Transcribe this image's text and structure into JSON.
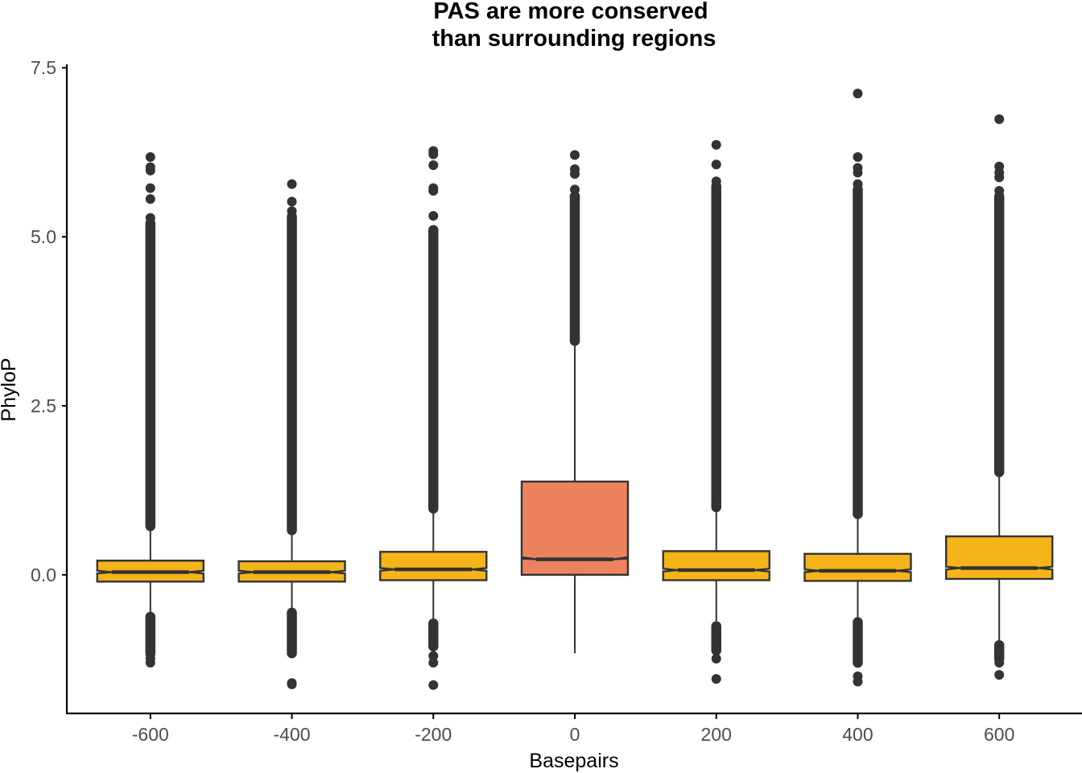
{
  "chart_data": {
    "type": "box",
    "title": [
      "PAS are more conserved",
      "than surrounding regions"
    ],
    "xlabel": "Basepairs",
    "ylabel": "PhyloP",
    "xlim": [
      -717,
      717
    ],
    "ylim": [
      -2.05,
      7.55
    ],
    "x_ticks": [
      -600,
      -400,
      -200,
      0,
      200,
      400,
      600
    ],
    "y_ticks": [
      0.0,
      2.5,
      5.0,
      7.5
    ],
    "y_tick_labels": [
      "0.0",
      "2.5",
      "5.0",
      "7.5"
    ],
    "grid": false,
    "legend": "none",
    "notched": true,
    "colors": {
      "box_fill": "#F4B41A",
      "highlight_fill": "#EC825E",
      "line": "#333333",
      "axis": "#000000",
      "tick_label": "#4d4d4d"
    },
    "boxes": [
      {
        "x": -600,
        "q1": -0.1,
        "median": 0.04,
        "q3": 0.21,
        "notch": [
          0.02,
          0.06
        ],
        "whisker_low": -0.56,
        "whisker_high": 0.68,
        "outliers_high": [
          0.72,
          6.18,
          6.03,
          5.98,
          5.72,
          5.56,
          5.28
        ],
        "outliers_high_dense": [
          0.72,
          5.2
        ],
        "outliers_low": [
          -1.3,
          -1.24,
          -1.18
        ],
        "outliers_low_dense": [
          -1.15,
          -0.62
        ],
        "highlight": false
      },
      {
        "x": -400,
        "q1": -0.1,
        "median": 0.04,
        "q3": 0.2,
        "notch": [
          0.02,
          0.06
        ],
        "whisker_low": -0.52,
        "whisker_high": 0.62,
        "outliers_high": [
          0.66,
          5.78,
          5.52,
          5.38
        ],
        "outliers_high_dense": [
          0.66,
          5.3
        ],
        "outliers_low": [
          -1.6,
          -1.62
        ],
        "outliers_low_dense": [
          -1.16,
          -0.56
        ],
        "highlight": false
      },
      {
        "x": -200,
        "q1": -0.08,
        "median": 0.08,
        "q3": 0.34,
        "notch": [
          0.06,
          0.1
        ],
        "whisker_low": -0.7,
        "whisker_high": 0.94,
        "outliers_high": [
          0.98,
          6.27,
          6.22,
          6.06,
          5.72,
          5.68,
          5.31
        ],
        "outliers_high_dense": [
          0.98,
          5.1
        ],
        "outliers_low": [
          -1.63,
          -1.3,
          -1.2
        ],
        "outliers_low_dense": [
          -1.06,
          -0.72
        ],
        "highlight": false
      },
      {
        "x": 0,
        "q1": 0.0,
        "median": 0.23,
        "q3": 1.38,
        "notch": [
          0.24,
          0.26
        ],
        "whisker_low": -1.16,
        "whisker_high": 3.44,
        "outliers_high": [
          3.46,
          6.21,
          6.0,
          5.93,
          5.7
        ],
        "outliers_high_dense": [
          3.46,
          5.6
        ],
        "outliers_low": [],
        "outliers_low_dense": [],
        "highlight": true
      },
      {
        "x": 200,
        "q1": -0.08,
        "median": 0.07,
        "q3": 0.35,
        "notch": [
          0.05,
          0.09
        ],
        "whisker_low": -0.74,
        "whisker_high": 0.98,
        "outliers_high": [
          1.0,
          6.36,
          6.07,
          5.82
        ],
        "outliers_high_dense": [
          1.0,
          5.75
        ],
        "outliers_low": [
          -1.54,
          -1.24
        ],
        "outliers_low_dense": [
          -1.12,
          -0.76
        ],
        "highlight": false
      },
      {
        "x": 400,
        "q1": -0.09,
        "median": 0.06,
        "q3": 0.31,
        "notch": [
          0.04,
          0.08
        ],
        "whisker_low": -0.68,
        "whisker_high": 0.88,
        "outliers_high": [
          0.9,
          7.12,
          6.18,
          6.02,
          5.95,
          5.78
        ],
        "outliers_high_dense": [
          0.9,
          5.7
        ],
        "outliers_low": [
          -1.58,
          -1.5
        ],
        "outliers_low_dense": [
          -1.3,
          -0.7
        ],
        "highlight": false
      },
      {
        "x": 600,
        "q1": -0.06,
        "median": 0.1,
        "q3": 0.57,
        "notch": [
          0.08,
          0.12
        ],
        "whisker_low": -1.04,
        "whisker_high": 1.5,
        "outliers_high": [
          1.52,
          6.74,
          6.04,
          5.95,
          5.88,
          5.68
        ],
        "outliers_high_dense": [
          1.52,
          5.6
        ],
        "outliers_low": [
          -1.48,
          -1.3
        ],
        "outliers_low_dense": [
          -1.24,
          -1.04
        ],
        "highlight": false
      }
    ]
  }
}
